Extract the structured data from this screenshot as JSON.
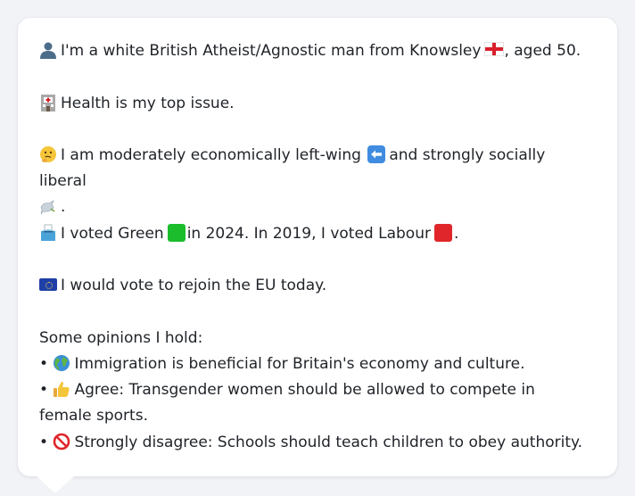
{
  "profile": {
    "intro_text": "I'm a white British Atheist/Agnostic man from Knowsley",
    "intro_suffix": ", aged 50.",
    "health_text": "Health is my top issue.",
    "economics_text_a": "I am moderately economically left-wing",
    "economics_text_b": "and strongly socially liberal",
    "economics_end": ".",
    "vote_a": "I voted Green",
    "vote_b": "in 2024. In 2019, I voted Labour",
    "vote_end": ".",
    "eu_text": "I would vote to rejoin the EU today.",
    "opinions_header": "Some opinions I hold:",
    "opinions": [
      {
        "bullet": "•",
        "text": "Immigration is beneficial for Britain's economy and culture."
      },
      {
        "bullet": "•",
        "text": "Agree: Transgender women should be allowed to compete in female sports."
      },
      {
        "bullet": "•",
        "text": "Strongly disagree: Schools should teach children to obey authority."
      }
    ]
  },
  "colors": {
    "green_square": "#1bbd2c",
    "red_square": "#e0262b",
    "text": "#1f2328",
    "card": "#ffffff"
  },
  "icons": [
    "person-icon",
    "england-flag-icon",
    "hospital-icon",
    "thinking-face-icon",
    "left-arrow-icon",
    "dove-icon",
    "ballot-box-icon",
    "green-square-icon",
    "red-square-icon",
    "eu-flag-icon",
    "globe-icon",
    "thumbs-up-icon",
    "prohibited-icon"
  ]
}
